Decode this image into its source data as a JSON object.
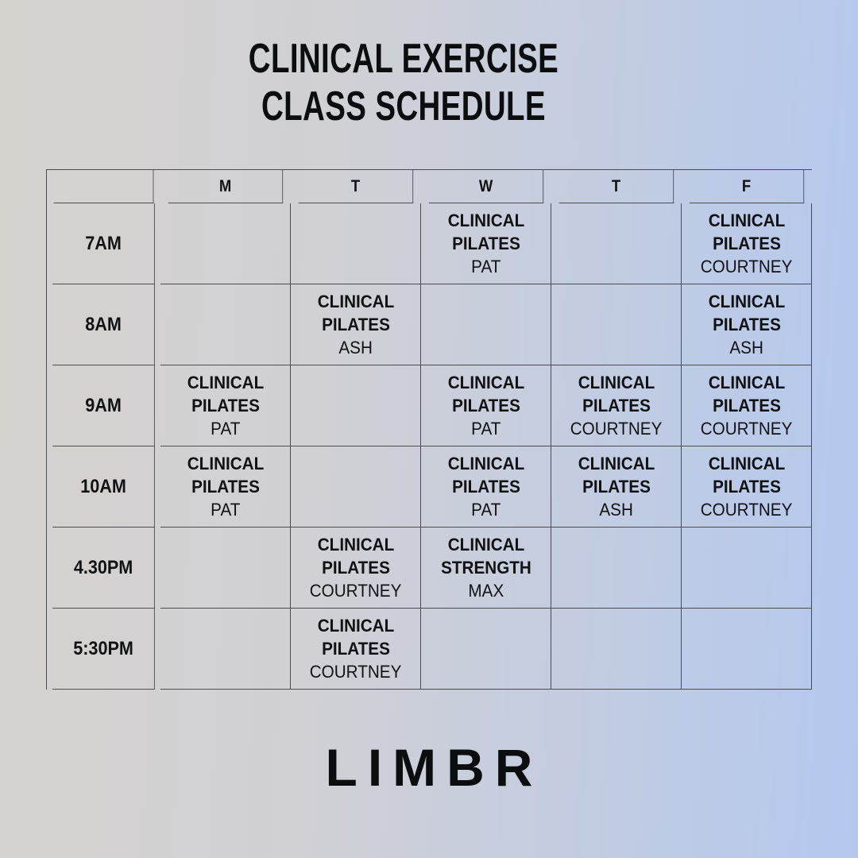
{
  "title": {
    "line1": "CLINICAL EXERCISE",
    "line2": "CLASS SCHEDULE"
  },
  "colors": {
    "background_left": "#d6d2ce",
    "background_right": "#b4c8ee",
    "table_border": "#4a4c50",
    "text": "#111214"
  },
  "schedule": {
    "corner": "",
    "days": [
      "M",
      "T",
      "W",
      "T",
      "F"
    ],
    "rows": [
      {
        "time": "7AM",
        "cells": [
          null,
          null,
          {
            "class_name": "CLINICAL PILATES",
            "instructor": "PAT"
          },
          null,
          {
            "class_name": "CLINICAL PILATES",
            "instructor": "COURTNEY"
          }
        ]
      },
      {
        "time": "8AM",
        "cells": [
          null,
          {
            "class_name": "CLINICAL PILATES",
            "instructor": "ASH"
          },
          null,
          null,
          {
            "class_name": "CLINICAL PILATES",
            "instructor": "ASH"
          }
        ]
      },
      {
        "time": "9AM",
        "cells": [
          {
            "class_name": "CLINICAL PILATES",
            "instructor": "PAT"
          },
          null,
          {
            "class_name": "CLINICAL PILATES",
            "instructor": "PAT"
          },
          {
            "class_name": "CLINICAL PILATES",
            "instructor": "COURTNEY"
          },
          {
            "class_name": "CLINICAL PILATES",
            "instructor": "COURTNEY"
          }
        ]
      },
      {
        "time": "10AM",
        "cells": [
          {
            "class_name": "CLINICAL PILATES",
            "instructor": "PAT"
          },
          null,
          {
            "class_name": "CLINICAL PILATES",
            "instructor": "PAT"
          },
          {
            "class_name": "CLINICAL PILATES",
            "instructor": "ASH"
          },
          {
            "class_name": "CLINICAL PILATES",
            "instructor": "COURTNEY"
          }
        ]
      },
      {
        "time": "4.30PM",
        "cells": [
          null,
          {
            "class_name": "CLINICAL PILATES",
            "instructor": "COURTNEY"
          },
          {
            "class_name": "CLINICAL STRENGTH",
            "instructor": "MAX"
          },
          null,
          null
        ]
      },
      {
        "time": "5:30PM",
        "cells": [
          null,
          {
            "class_name": "CLINICAL PILATES",
            "instructor": "COURTNEY"
          },
          null,
          null,
          null
        ]
      }
    ]
  },
  "footer": {
    "logo": "LIMBR"
  }
}
